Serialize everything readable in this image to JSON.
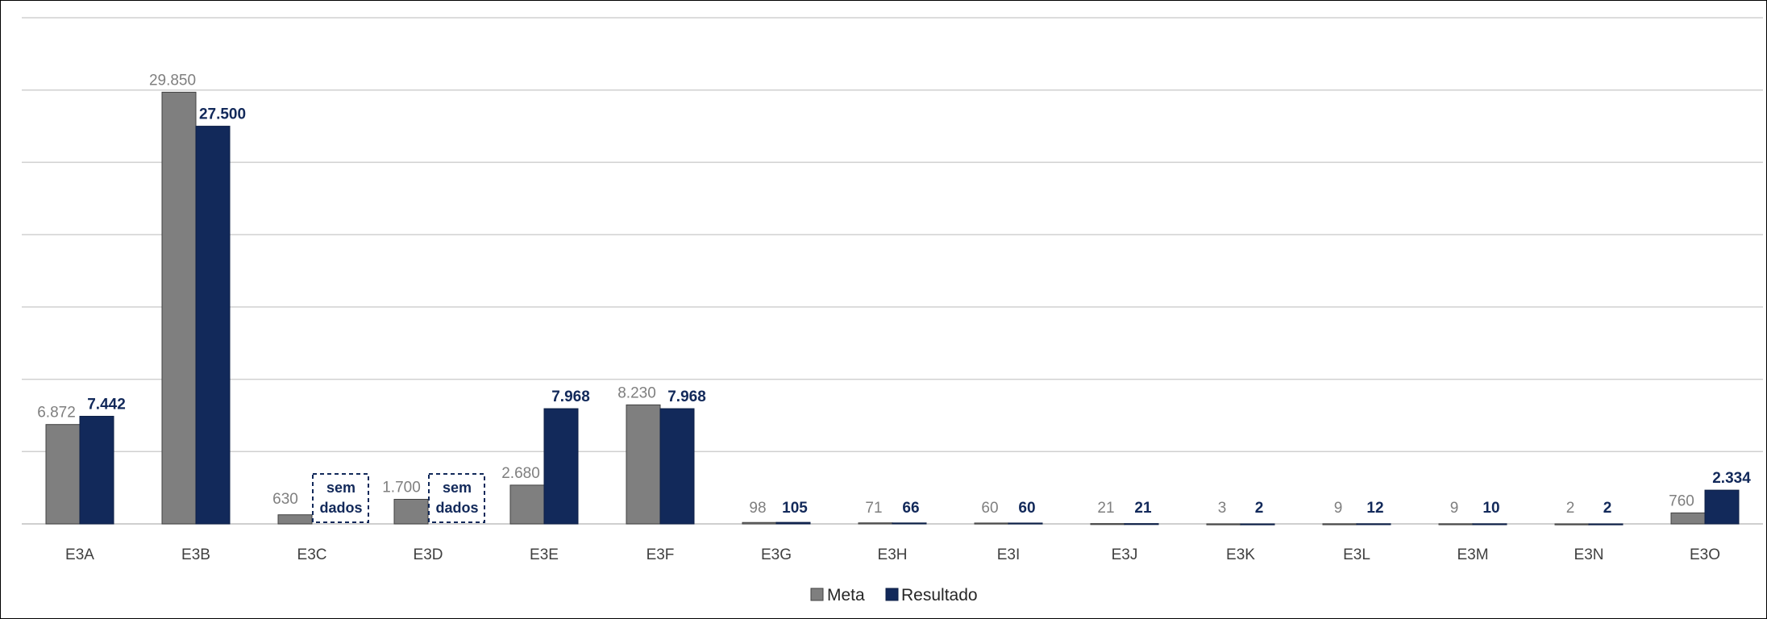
{
  "chart_data": {
    "type": "bar",
    "title": "",
    "xlabel": "",
    "ylabel": "",
    "ylim": [
      0,
      35000
    ],
    "grid": true,
    "legend_position": "bottom-center",
    "categories": [
      "E3A",
      "E3B",
      "E3C",
      "E3D",
      "E3E",
      "E3F",
      "E3G",
      "E3H",
      "E3I",
      "E3J",
      "E3K",
      "E3L",
      "E3M",
      "E3N",
      "E3O"
    ],
    "series": [
      {
        "name": "Meta",
        "color": "#7f7f7f",
        "values": [
          6872,
          29850,
          630,
          1700,
          2680,
          8230,
          98,
          71,
          60,
          21,
          3,
          9,
          9,
          2,
          760
        ],
        "labels": [
          "6.872",
          "29.850",
          "630",
          "1.700",
          "2.680",
          "8.230",
          "98",
          "71",
          "60",
          "21",
          "3",
          "9",
          "9",
          "2",
          "760"
        ]
      },
      {
        "name": "Resultado",
        "color": "#12295a",
        "values": [
          7442,
          27500,
          null,
          null,
          7968,
          7968,
          105,
          66,
          60,
          21,
          2,
          12,
          10,
          2,
          2334
        ],
        "labels": [
          "7.442",
          "27.500",
          "",
          "",
          "7.968",
          "7.968",
          "105",
          "66",
          "60",
          "21",
          "2",
          "12",
          "10",
          "2",
          "2.334"
        ]
      }
    ],
    "no_data_label": [
      "sem",
      "dados"
    ]
  }
}
